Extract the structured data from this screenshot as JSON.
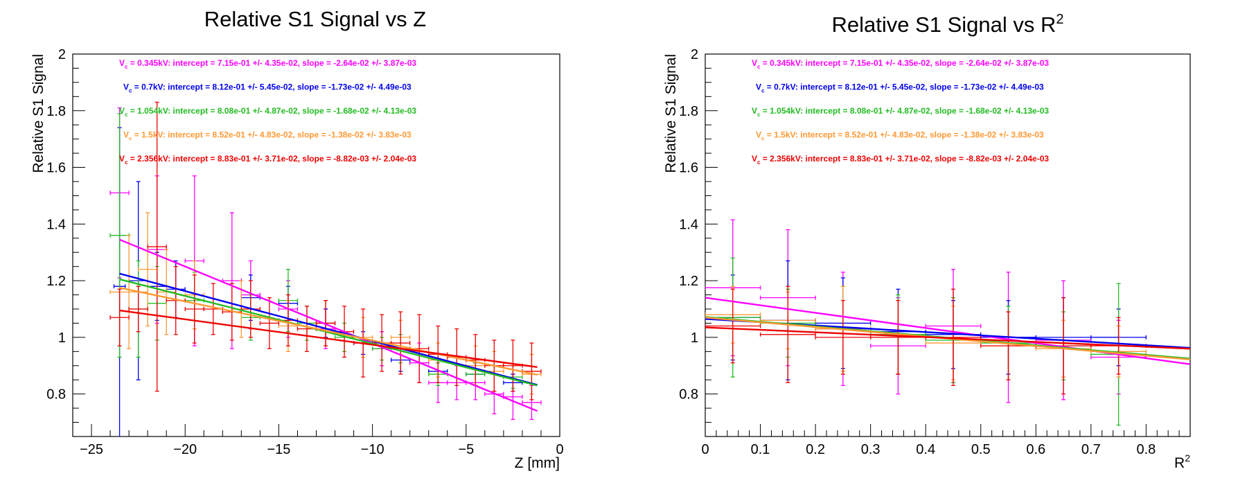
{
  "chart_data": [
    {
      "type": "scatter",
      "title": "Relative S1 Signal vs Z",
      "xlabel": "Z [mm]",
      "ylabel": "Relative S1 Signal",
      "xlim": [
        -26,
        0
      ],
      "ylim": [
        0.65,
        2.0
      ],
      "xticks": [
        -25,
        -20,
        -15,
        -10,
        -5,
        0
      ],
      "xtick_labels": [
        "−25",
        "−20",
        "−15",
        "−10",
        "−5",
        "0"
      ],
      "yticks": [
        0.8,
        1.0,
        1.2,
        1.4,
        1.6,
        1.8,
        2.0
      ],
      "ytick_labels": [
        "0.8",
        "1",
        "1.2",
        "1.4",
        "1.6",
        "1.8",
        "2"
      ],
      "grid": false,
      "legend_position": "top",
      "fit_lines": [
        {
          "color": "#ff00ff",
          "x": [
            -23.5,
            -1.2
          ],
          "y": [
            1.345,
            0.74
          ]
        },
        {
          "color": "#0000ee",
          "x": [
            -23.5,
            -1.2
          ],
          "y": [
            1.225,
            0.832
          ]
        },
        {
          "color": "#22bb22",
          "x": [
            -23.5,
            -1.2
          ],
          "y": [
            1.205,
            0.83
          ]
        },
        {
          "color": "#ff9933",
          "x": [
            -23.5,
            -1.2
          ],
          "y": [
            1.175,
            0.868
          ]
        },
        {
          "color": "#ee0000",
          "x": [
            -23.5,
            -1.2
          ],
          "y": [
            1.095,
            0.895
          ]
        }
      ],
      "series": [
        {
          "color": "#ff00ff",
          "points": [
            [
              -23.5,
              1.51,
              0.5,
              0.3
            ],
            [
              -21.5,
              1.31,
              0.5,
              0.26
            ],
            [
              -19.5,
              1.27,
              0.5,
              0.3
            ],
            [
              -17.5,
              1.2,
              0.5,
              0.24
            ],
            [
              -16.5,
              1.15,
              0.5,
              0.12
            ],
            [
              -14.5,
              1.1,
              0.5,
              0.1
            ],
            [
              -12.5,
              1.03,
              0.5,
              0.07
            ],
            [
              -9.5,
              0.96,
              0.5,
              0.06
            ],
            [
              -7.5,
              0.91,
              0.5,
              0.07
            ],
            [
              -6.5,
              0.84,
              0.5,
              0.07
            ],
            [
              -5.5,
              0.84,
              0.5,
              0.06
            ],
            [
              -4.5,
              0.84,
              0.5,
              0.06
            ],
            [
              -3.5,
              0.8,
              0.5,
              0.07
            ],
            [
              -2.5,
              0.79,
              0.5,
              0.08
            ],
            [
              -1.5,
              0.77,
              0.5,
              0.06
            ]
          ]
        },
        {
          "color": "#0000ee",
          "points": [
            [
              -23.5,
              1.18,
              0.3,
              0.56
            ],
            [
              -22.5,
              1.2,
              0.5,
              0.35
            ],
            [
              -21.5,
              1.18,
              0.5,
              0.12
            ],
            [
              -20.5,
              1.17,
              0.5,
              0.1
            ],
            [
              -16.5,
              1.14,
              0.5,
              0.08
            ],
            [
              -14.5,
              1.12,
              0.5,
              0.06
            ],
            [
              -12.5,
              1.05,
              0.5,
              0.05
            ],
            [
              -10.5,
              0.98,
              0.5,
              0.04
            ],
            [
              -8.5,
              0.92,
              0.5,
              0.04
            ],
            [
              -6.5,
              0.88,
              0.5,
              0.04
            ],
            [
              -4.5,
              0.87,
              0.5,
              0.04
            ],
            [
              -2.5,
              0.84,
              0.5,
              0.03
            ]
          ]
        },
        {
          "color": "#22bb22",
          "points": [
            [
              -23.5,
              1.36,
              0.5,
              0.43
            ],
            [
              -22.5,
              1.1,
              0.5,
              0.17
            ],
            [
              -21.5,
              1.12,
              0.5,
              0.13
            ],
            [
              -19.5,
              1.13,
              0.5,
              0.1
            ],
            [
              -16.5,
              1.07,
              0.5,
              0.08
            ],
            [
              -14.5,
              1.13,
              0.5,
              0.11
            ],
            [
              -13.5,
              1.05,
              0.5,
              0.06
            ],
            [
              -11.5,
              1.0,
              0.5,
              0.05
            ],
            [
              -9.5,
              0.96,
              0.5,
              0.04
            ],
            [
              -8.5,
              0.96,
              0.5,
              0.05
            ],
            [
              -6.5,
              0.87,
              0.5,
              0.04
            ],
            [
              -4.5,
              0.87,
              0.5,
              0.04
            ],
            [
              -2.5,
              0.86,
              0.5,
              0.04
            ]
          ]
        },
        {
          "color": "#ff9933",
          "points": [
            [
              -23.0,
              1.16,
              1.0,
              0.2
            ],
            [
              -22.0,
              1.24,
              0.5,
              0.2
            ],
            [
              -21.0,
              1.16,
              0.5,
              0.15
            ],
            [
              -19.5,
              1.15,
              0.5,
              0.12
            ],
            [
              -17.0,
              1.1,
              0.5,
              0.1
            ],
            [
              -14.5,
              1.04,
              0.5,
              0.09
            ],
            [
              -12.5,
              1.05,
              0.5,
              0.08
            ],
            [
              -10.5,
              1.0,
              0.5,
              0.07
            ],
            [
              -8.5,
              1.0,
              0.5,
              0.06
            ],
            [
              -6.5,
              0.92,
              0.5,
              0.06
            ],
            [
              -4.5,
              0.9,
              0.5,
              0.07
            ],
            [
              -3.5,
              0.88,
              0.5,
              0.07
            ],
            [
              -1.5,
              0.87,
              0.5,
              0.07
            ]
          ]
        },
        {
          "color": "#ee0000",
          "points": [
            [
              -23.5,
              1.07,
              0.5,
              0.1
            ],
            [
              -22.5,
              1.1,
              0.5,
              0.08
            ],
            [
              -21.5,
              1.32,
              0.5,
              0.51
            ],
            [
              -20.5,
              1.13,
              0.5,
              0.12
            ],
            [
              -19.5,
              1.1,
              0.5,
              0.12
            ],
            [
              -18.5,
              1.1,
              0.5,
              0.09
            ],
            [
              -17.5,
              1.09,
              0.5,
              0.1
            ],
            [
              -16.5,
              1.1,
              0.5,
              0.1
            ],
            [
              -15.5,
              1.05,
              0.5,
              0.09
            ],
            [
              -14.5,
              1.06,
              0.5,
              0.09
            ],
            [
              -13.5,
              1.03,
              0.5,
              0.08
            ],
            [
              -12.5,
              1.05,
              0.5,
              0.08
            ],
            [
              -11.5,
              1.02,
              0.5,
              0.09
            ],
            [
              -10.5,
              0.98,
              0.5,
              0.12
            ],
            [
              -9.5,
              0.98,
              0.5,
              0.1
            ],
            [
              -8.5,
              0.98,
              0.5,
              0.11
            ],
            [
              -7.5,
              0.96,
              0.5,
              0.12
            ],
            [
              -6.5,
              0.94,
              0.5,
              0.1
            ],
            [
              -5.5,
              0.93,
              0.5,
              0.1
            ],
            [
              -4.5,
              0.92,
              0.5,
              0.09
            ],
            [
              -3.5,
              0.9,
              0.5,
              0.09
            ],
            [
              -2.5,
              0.9,
              0.5,
              0.09
            ],
            [
              -1.5,
              0.88,
              0.5,
              0.1
            ]
          ]
        }
      ]
    },
    {
      "type": "scatter",
      "title": "Relative S1 Signal vs R",
      "title_sup": "2",
      "xlabel": "R",
      "xlabel_sup": "2",
      "ylabel": "Relative S1 Signal",
      "xlim": [
        0,
        0.88
      ],
      "ylim": [
        0.65,
        2.0
      ],
      "xticks": [
        0,
        0.1,
        0.2,
        0.3,
        0.4,
        0.5,
        0.6,
        0.7,
        0.8
      ],
      "xtick_labels": [
        "0",
        "0.1",
        "0.2",
        "0.3",
        "0.4",
        "0.5",
        "0.6",
        "0.7",
        "0.8"
      ],
      "yticks": [
        0.8,
        1.0,
        1.2,
        1.4,
        1.6,
        1.8,
        2.0
      ],
      "ytick_labels": [
        "0.8",
        "1",
        "1.2",
        "1.4",
        "1.6",
        "1.8",
        "2"
      ],
      "grid": false,
      "legend_position": "top",
      "fit_lines": [
        {
          "color": "#ff00ff",
          "x": [
            0.0,
            0.88
          ],
          "y": [
            1.14,
            0.905
          ]
        },
        {
          "color": "#0000ee",
          "x": [
            0.0,
            0.88
          ],
          "y": [
            1.065,
            0.963
          ]
        },
        {
          "color": "#22bb22",
          "x": [
            0.0,
            0.88
          ],
          "y": [
            1.072,
            0.925
          ]
        },
        {
          "color": "#ff9933",
          "x": [
            0.0,
            0.88
          ],
          "y": [
            1.07,
            0.922
          ]
        },
        {
          "color": "#ee0000",
          "x": [
            0.0,
            0.88
          ],
          "y": [
            1.035,
            0.96
          ]
        }
      ],
      "series": [
        {
          "color": "#ff00ff",
          "points": [
            [
              0.05,
              1.175,
              0.05,
              0.24
            ],
            [
              0.15,
              1.14,
              0.05,
              0.24
            ],
            [
              0.25,
              1.03,
              0.05,
              0.2
            ],
            [
              0.35,
              0.97,
              0.05,
              0.17
            ],
            [
              0.45,
              1.04,
              0.05,
              0.2
            ],
            [
              0.55,
              1.0,
              0.05,
              0.23
            ],
            [
              0.65,
              0.99,
              0.05,
              0.21
            ],
            [
              0.75,
              0.93,
              0.05,
              0.13
            ]
          ]
        },
        {
          "color": "#0000ee",
          "points": [
            [
              0.05,
              1.07,
              0.05,
              0.15
            ],
            [
              0.15,
              1.06,
              0.05,
              0.21
            ],
            [
              0.25,
              1.05,
              0.05,
              0.16
            ],
            [
              0.35,
              1.02,
              0.05,
              0.15
            ],
            [
              0.45,
              1.01,
              0.05,
              0.12
            ],
            [
              0.55,
              1.0,
              0.05,
              0.13
            ],
            [
              0.65,
              1.0,
              0.1,
              0.14
            ],
            [
              0.75,
              1.0,
              0.05,
              0.1
            ]
          ]
        },
        {
          "color": "#22bb22",
          "points": [
            [
              0.05,
              1.07,
              0.05,
              0.21
            ],
            [
              0.15,
              1.05,
              0.05,
              0.12
            ],
            [
              0.25,
              1.03,
              0.05,
              0.15
            ],
            [
              0.35,
              1.01,
              0.05,
              0.14
            ],
            [
              0.45,
              0.99,
              0.05,
              0.15
            ],
            [
              0.55,
              0.98,
              0.05,
              0.13
            ],
            [
              0.65,
              0.97,
              0.05,
              0.12
            ],
            [
              0.75,
              0.94,
              0.05,
              0.25
            ]
          ]
        },
        {
          "color": "#ff9933",
          "points": [
            [
              0.05,
              1.08,
              0.05,
              0.1
            ],
            [
              0.15,
              1.06,
              0.05,
              0.1
            ],
            [
              0.25,
              1.03,
              0.05,
              0.15
            ],
            [
              0.35,
              1.0,
              0.05,
              0.13
            ],
            [
              0.45,
              0.98,
              0.05,
              0.13
            ],
            [
              0.55,
              0.97,
              0.05,
              0.12
            ],
            [
              0.65,
              0.96,
              0.05,
              0.1
            ],
            [
              0.75,
              0.95,
              0.05,
              0.09
            ]
          ]
        },
        {
          "color": "#ee0000",
          "points": [
            [
              0.05,
              1.04,
              0.05,
              0.13
            ],
            [
              0.15,
              1.01,
              0.05,
              0.17
            ],
            [
              0.25,
              1.0,
              0.05,
              0.13
            ],
            [
              0.35,
              1.0,
              0.05,
              0.13
            ],
            [
              0.45,
              1.0,
              0.05,
              0.17
            ],
            [
              0.55,
              0.97,
              0.05,
              0.12
            ],
            [
              0.65,
              0.97,
              0.05,
              0.17
            ],
            [
              0.75,
              0.97,
              0.05,
              0.1
            ]
          ]
        }
      ]
    }
  ],
  "legend_entries": [
    {
      "color": "#ff00ff",
      "prefix": "V",
      "sub": "c",
      "text": " = 0.345kV: intercept = 7.15e-01 +/- 4.35e-02, slope = -2.64e-02 +/- 3.87e-03"
    },
    {
      "color": "#0000ee",
      "prefix": "V",
      "sub": "c",
      "text": " = 0.7kV: intercept = 8.12e-01 +/- 5.45e-02, slope = -1.73e-02 +/- 4.49e-03"
    },
    {
      "color": "#22bb22",
      "prefix": "V",
      "sub": "c",
      "text": " = 1.054kV: intercept = 8.08e-01 +/- 4.87e-02, slope = -1.68e-02 +/- 4.13e-03"
    },
    {
      "color": "#ff9933",
      "prefix": "V",
      "sub": "c",
      "text": " = 1.5kV: intercept = 8.52e-01 +/- 4.83e-02, slope = -1.38e-02 +/- 3.83e-03"
    },
    {
      "color": "#ee0000",
      "prefix": "V",
      "sub": "c",
      "text": " = 2.356kV: intercept = 8.83e-01 +/- 3.71e-02, slope = -8.82e-03 +/- 2.04e-03"
    }
  ]
}
